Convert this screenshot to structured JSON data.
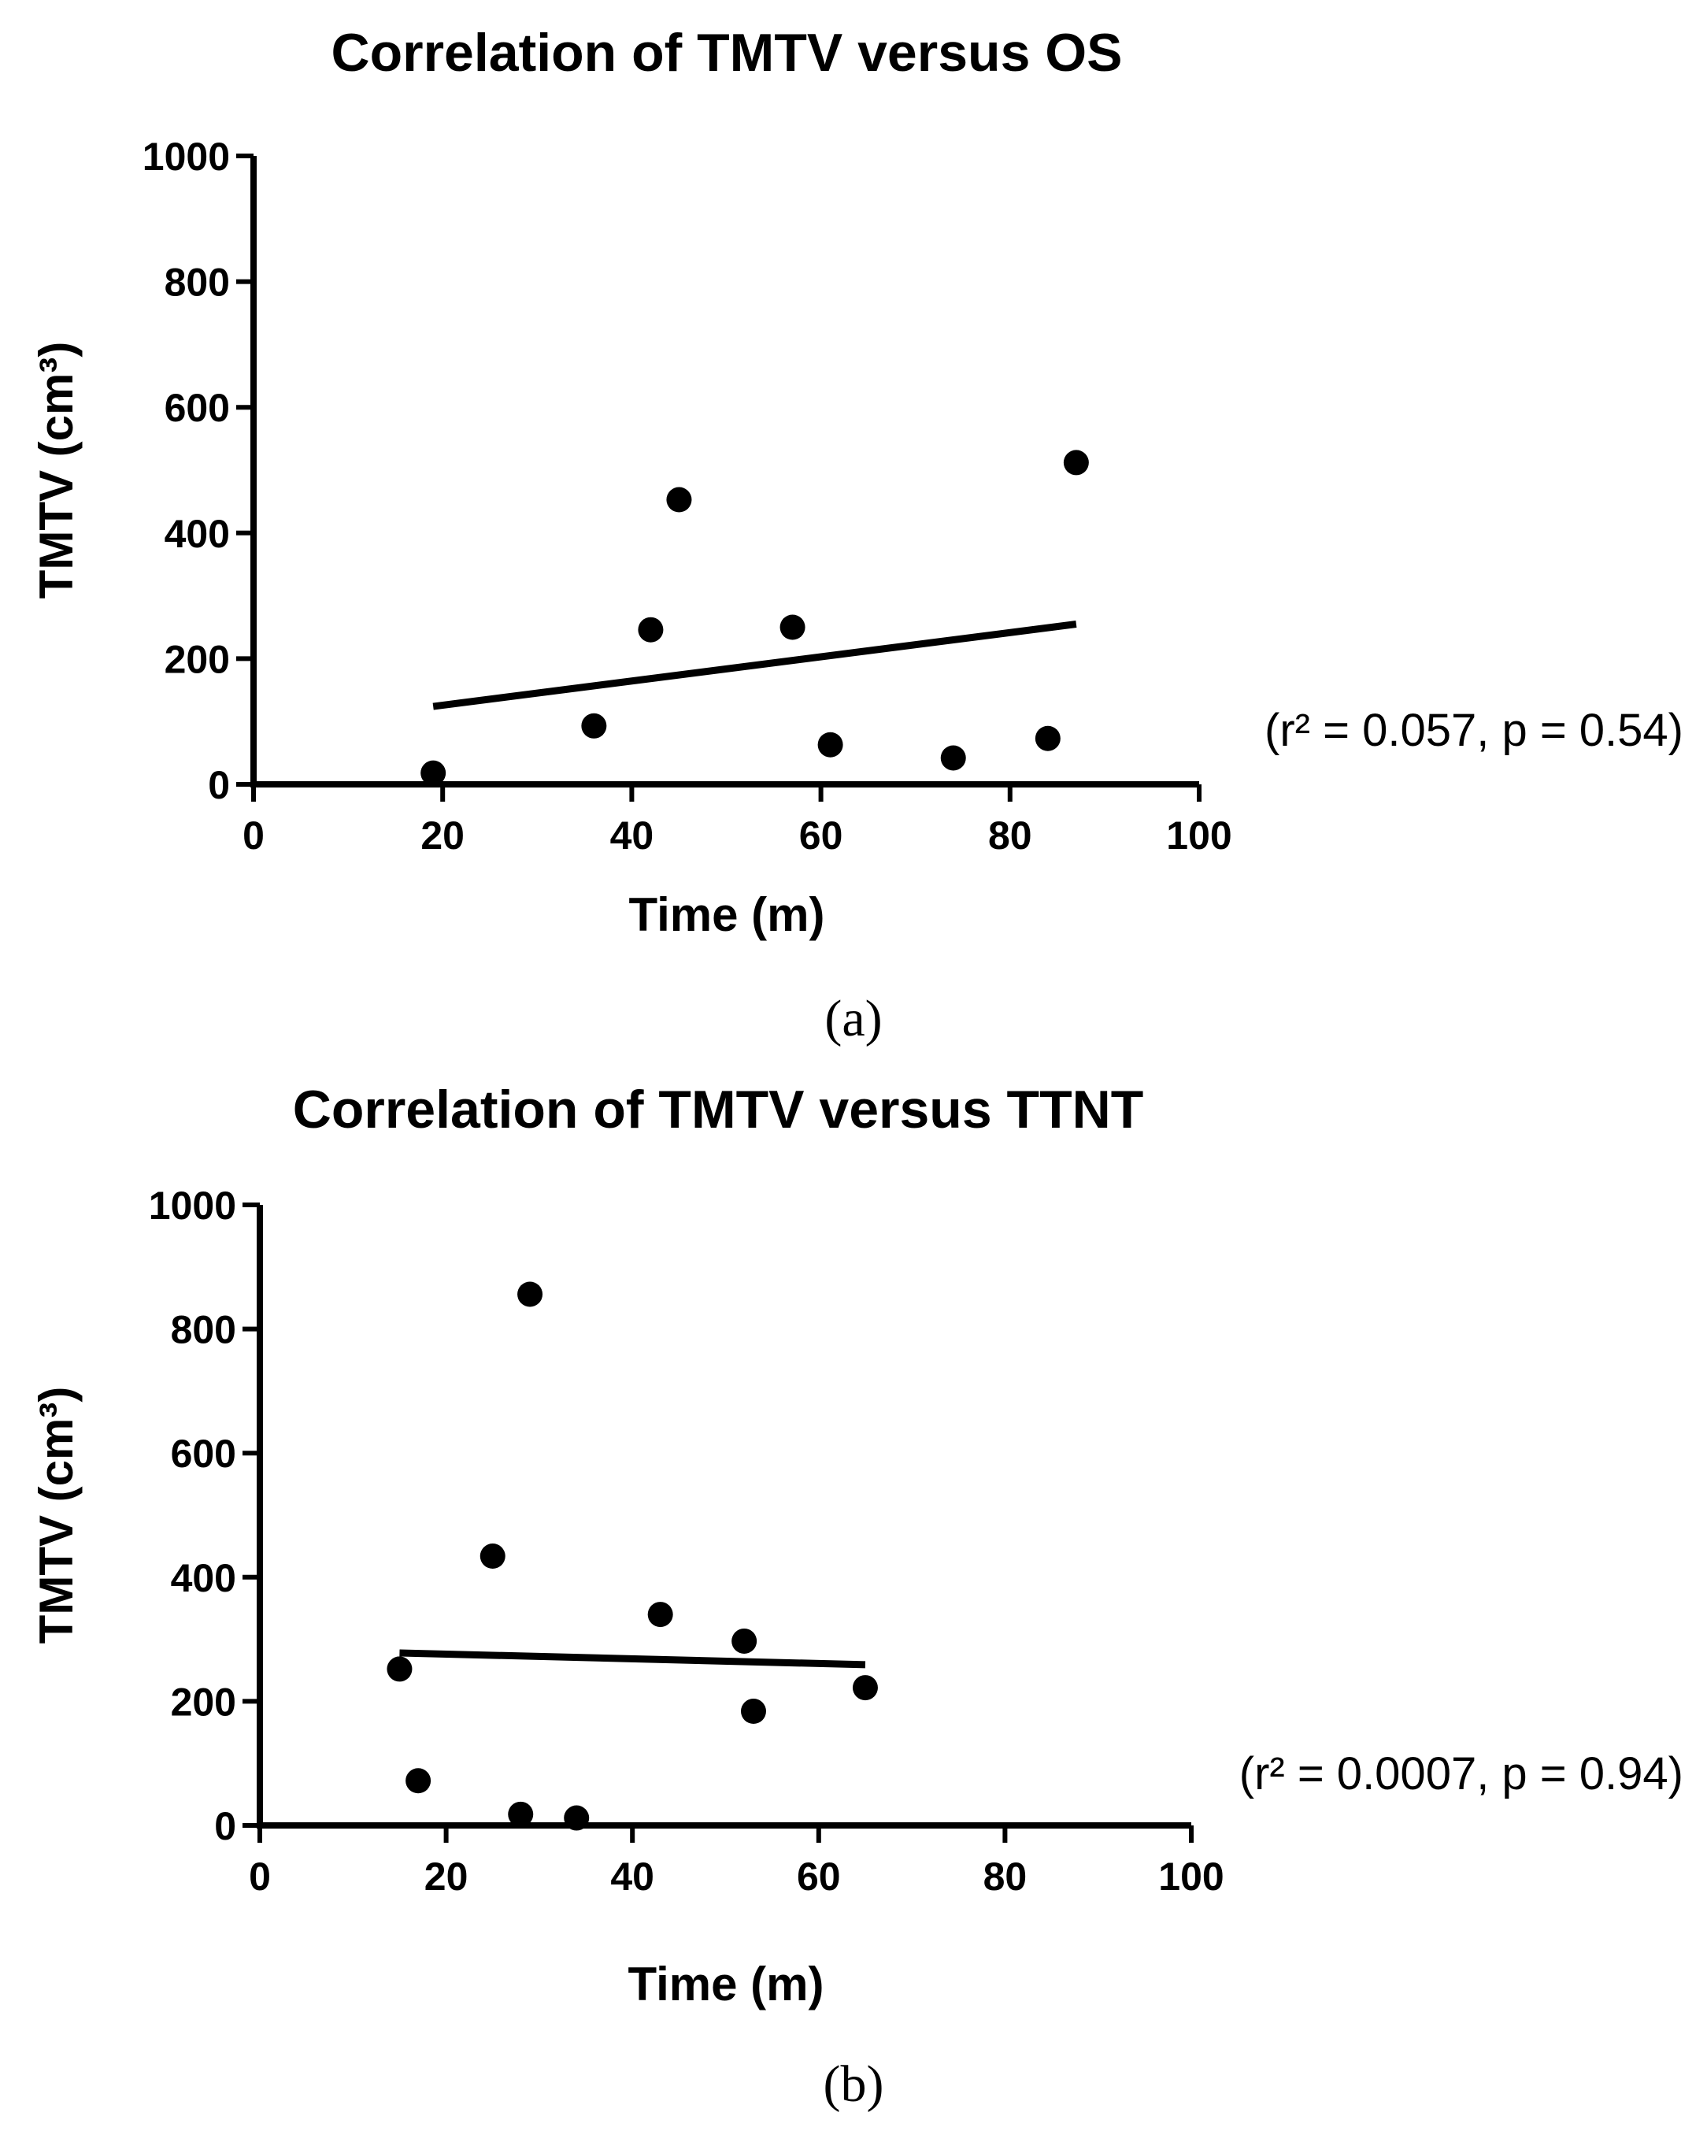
{
  "chart_data": [
    {
      "type": "scatter",
      "title": "Correlation of TMTV versus OS",
      "xlabel": "Time (m)",
      "ylabel": "TMTV (cm³)",
      "xlim": [
        0,
        100
      ],
      "ylim": [
        0,
        1000
      ],
      "xticks": [
        "0",
        "20",
        "40",
        "60",
        "80",
        "100"
      ],
      "yticks": [
        "0",
        "200",
        "400",
        "600",
        "800",
        "1000"
      ],
      "points": [
        {
          "x": 19,
          "y": 18
        },
        {
          "x": 36,
          "y": 93
        },
        {
          "x": 42,
          "y": 246
        },
        {
          "x": 45,
          "y": 453
        },
        {
          "x": 57,
          "y": 250
        },
        {
          "x": 61,
          "y": 63
        },
        {
          "x": 74,
          "y": 42
        },
        {
          "x": 84,
          "y": 73
        },
        {
          "x": 87,
          "y": 512
        }
      ],
      "fit_line": {
        "x1": 19,
        "y1": 124,
        "x2": 87,
        "y2": 255
      },
      "annotation": "(r² = 0.057, p = 0.54)",
      "panel_label": "(a)"
    },
    {
      "type": "scatter",
      "title": "Correlation of TMTV versus TTNT",
      "xlabel": "Time (m)",
      "ylabel": "TMTV (cm³)",
      "xlim": [
        0,
        100
      ],
      "ylim": [
        0,
        1000
      ],
      "xticks": [
        "0",
        "20",
        "40",
        "60",
        "80",
        "100"
      ],
      "yticks": [
        "0",
        "200",
        "400",
        "600",
        "800",
        "1000"
      ],
      "points": [
        {
          "x": 15,
          "y": 252
        },
        {
          "x": 17,
          "y": 72
        },
        {
          "x": 25,
          "y": 434
        },
        {
          "x": 28,
          "y": 18
        },
        {
          "x": 29,
          "y": 856
        },
        {
          "x": 34,
          "y": 12
        },
        {
          "x": 43,
          "y": 340
        },
        {
          "x": 52,
          "y": 297
        },
        {
          "x": 53,
          "y": 184
        },
        {
          "x": 65,
          "y": 222
        }
      ],
      "fit_line": {
        "x1": 15,
        "y1": 278,
        "x2": 65,
        "y2": 259
      },
      "annotation": "(r² = 0.0007, p = 0.94)",
      "panel_label": "(b)"
    }
  ]
}
